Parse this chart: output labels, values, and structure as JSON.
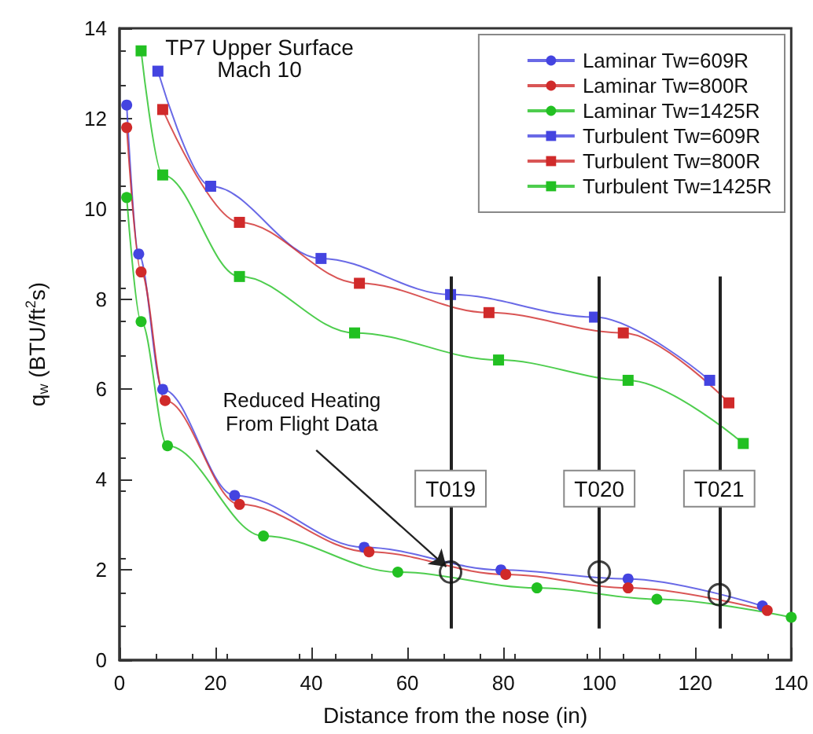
{
  "chart_data": {
    "type": "line",
    "title": "TP7 Upper Surface",
    "subtitle": "Mach 10",
    "xlabel": "Distance from the nose (in)",
    "ylabel": "q$_{w}$ (BTU/ft$^{2}$s)",
    "xlim": [
      0,
      140
    ],
    "xticks": [
      0,
      20,
      40,
      60,
      80,
      100,
      120,
      140
    ],
    "ylim": [
      0,
      14
    ],
    "yticks": [
      0,
      2,
      4,
      6,
      8,
      10,
      12,
      14
    ],
    "grid": false,
    "legend": "top right",
    "series": [
      {
        "name": "Laminar Tw=609R",
        "color": "#4444e0",
        "marker": "circle",
        "x": [
          1.5,
          4,
          9,
          24,
          51,
          79.5,
          106,
          134
        ],
        "values": [
          12.3,
          9.0,
          6.0,
          3.65,
          2.5,
          2.0,
          1.8,
          1.2
        ]
      },
      {
        "name": "Laminar Tw=800R",
        "color": "#d02a2a",
        "marker": "circle",
        "x": [
          1.5,
          4.5,
          9.5,
          25,
          52,
          80.5,
          106,
          135
        ],
        "values": [
          11.8,
          8.6,
          5.75,
          3.45,
          2.4,
          1.9,
          1.6,
          1.1
        ]
      },
      {
        "name": "Laminar Tw=1425R",
        "color": "#22c022",
        "marker": "circle",
        "x": [
          1.5,
          4.5,
          10,
          30,
          58,
          87,
          112,
          140
        ],
        "values": [
          10.25,
          7.5,
          4.75,
          2.75,
          1.95,
          1.6,
          1.35,
          0.95
        ]
      },
      {
        "name": "Turbulent Tw=609R",
        "color": "#4444e0",
        "marker": "square",
        "x": [
          8,
          19,
          42,
          69,
          99,
          123
        ],
        "values": [
          13.05,
          10.5,
          8.9,
          8.1,
          7.6,
          6.2
        ]
      },
      {
        "name": "Turbulent Tw=800R",
        "color": "#d02a2a",
        "marker": "square",
        "x": [
          9,
          25,
          50,
          77,
          105,
          127
        ],
        "values": [
          12.2,
          9.7,
          8.35,
          7.7,
          7.25,
          5.7
        ]
      },
      {
        "name": "Turbulent Tw=1425R",
        "color": "#22c022",
        "marker": "square",
        "x": [
          4.5,
          9,
          25,
          49,
          79,
          106,
          130
        ],
        "values": [
          13.5,
          10.75,
          8.5,
          7.25,
          6.65,
          6.2,
          4.8
        ]
      },
      {
        "type": "scatter",
        "color": "#111111",
        "marker": "circle",
        "x": [
          69,
          100,
          125
        ],
        "values": [
          1.95,
          1.95,
          1.45
        ]
      }
    ],
    "ref_lines": [
      {
        "axis": "x",
        "value": 69,
        "label": "T019",
        "color": "#222222"
      },
      {
        "axis": "x",
        "value": 100,
        "label": "T020",
        "color": "#222222"
      },
      {
        "axis": "x",
        "value": 125,
        "label": "T021",
        "color": "#222222"
      }
    ],
    "annotations": [
      {
        "text": "Reduced Heating\nFrom Flight Data",
        "x": 69,
        "y": 1.95
      }
    ]
  }
}
